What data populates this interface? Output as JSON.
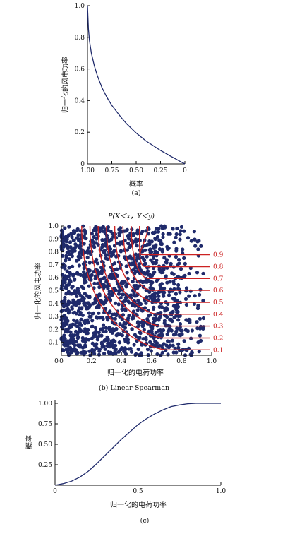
{
  "chart_data": [
    {
      "type": "line",
      "caption": "(a)",
      "xlabel": "概率",
      "ylabel": "归一化的风电功率",
      "xlim": [
        1.0,
        0
      ],
      "ylim": [
        0,
        1.0
      ],
      "x_ticks": [
        "1.00",
        "0.75",
        "0.50",
        "0.25",
        "0"
      ],
      "y_ticks": [
        "0",
        "0.2",
        "0.4",
        "0.6",
        "0.8",
        "1.0"
      ],
      "x_reversed": true,
      "line_color": "#1f2a6b",
      "series": [
        {
          "x": [
            1.0,
            0.99,
            0.98,
            0.96,
            0.93,
            0.9,
            0.85,
            0.8,
            0.75,
            0.7,
            0.65,
            0.6,
            0.55,
            0.5,
            0.45,
            0.4,
            0.35,
            0.3,
            0.25,
            0.2,
            0.15,
            0.1,
            0.05,
            0.0
          ],
          "y": [
            1.0,
            0.85,
            0.78,
            0.7,
            0.62,
            0.56,
            0.48,
            0.42,
            0.37,
            0.33,
            0.29,
            0.255,
            0.225,
            0.195,
            0.17,
            0.145,
            0.125,
            0.105,
            0.085,
            0.068,
            0.05,
            0.033,
            0.016,
            0.0
          ]
        }
      ]
    },
    {
      "type": "scatter",
      "caption": "(b) Linear-Spearman",
      "title": "P(X＜x，Y＜y)",
      "xlabel": "归一化的电荷功率",
      "ylabel": "归一化的风电功率",
      "xlim": [
        0,
        1.0
      ],
      "ylim": [
        0,
        1.0
      ],
      "x_ticks": [
        "0",
        "0.2",
        "0.4",
        "0.6",
        "0.8",
        "1.0"
      ],
      "y_ticks": [
        "0.1",
        "0.2",
        "0.3",
        "0.4",
        "0.5",
        "0.6",
        "0.7",
        "0.8",
        "0.9",
        "1.0"
      ],
      "point_color": "#1f2a6b",
      "contour_color": "#cc2222",
      "contour_labels": [
        "0.9",
        "0.8",
        "0.7",
        "0.6",
        "0.5",
        "0.4",
        "0.3",
        "0.2",
        "0.1"
      ],
      "contour_levels": [
        0.9,
        0.8,
        0.7,
        0.6,
        0.5,
        0.4,
        0.3,
        0.2,
        0.1
      ]
    },
    {
      "type": "line",
      "caption": "(c)",
      "xlabel": "归一化的电荷功率",
      "ylabel": "概率",
      "xlim": [
        0,
        1.0
      ],
      "ylim": [
        0,
        1.0
      ],
      "x_ticks": [
        "0",
        "0.5",
        "1.0"
      ],
      "y_ticks": [
        "0.25",
        "0.50",
        "0.75",
        "1.00"
      ],
      "line_color": "#1f2a6b",
      "series": [
        {
          "x": [
            0.0,
            0.05,
            0.1,
            0.15,
            0.2,
            0.25,
            0.3,
            0.35,
            0.4,
            0.45,
            0.5,
            0.55,
            0.6,
            0.65,
            0.7,
            0.75,
            0.8,
            0.85,
            0.9,
            0.95,
            1.0
          ],
          "y": [
            0.0,
            0.02,
            0.05,
            0.1,
            0.17,
            0.26,
            0.36,
            0.46,
            0.56,
            0.65,
            0.74,
            0.81,
            0.87,
            0.92,
            0.96,
            0.98,
            0.995,
            1.0,
            1.0,
            1.0,
            1.0
          ]
        }
      ]
    }
  ]
}
